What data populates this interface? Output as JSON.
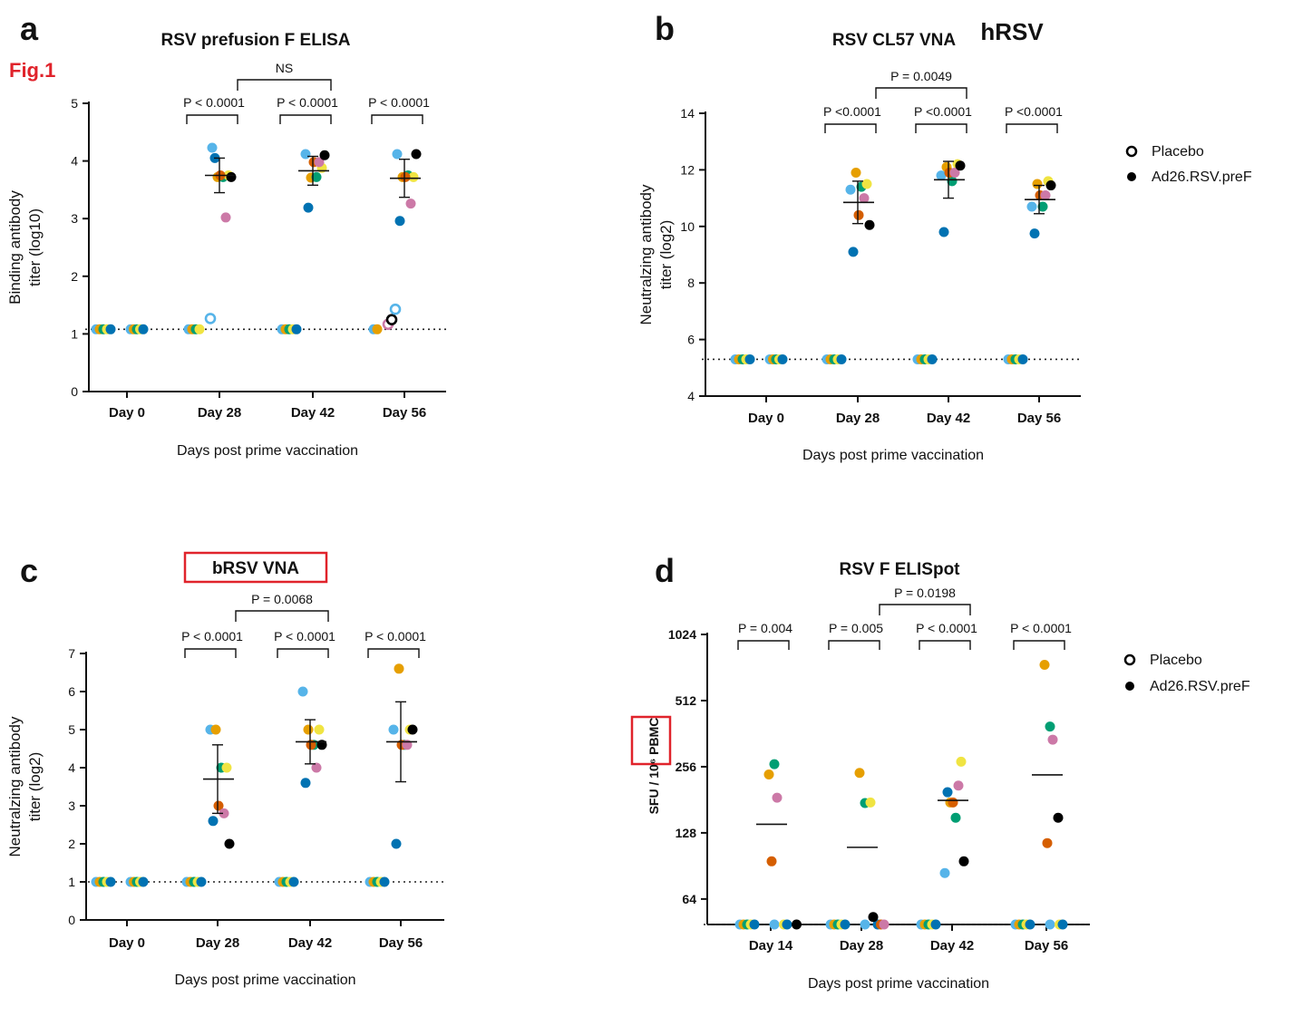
{
  "figure_label": "Fig.1",
  "legend_placebo": "Placebo",
  "legend_vaccine": "Ad26.RSV.preF",
  "colors": {
    "accent_red": "#e0232b",
    "axis": "#111111",
    "dots": [
      "#56b4e9",
      "#e69f00",
      "#009e73",
      "#f0e442",
      "#0072b2",
      "#d55e00",
      "#cc79a7",
      "#000000"
    ]
  },
  "chart_data": [
    {
      "panel": "a",
      "type": "scatter",
      "title": "RSV prefusion F ELISA",
      "ylabel_line1": "Binding antibody",
      "ylabel_line2": "titer (log10)",
      "xlabel": "Days post prime vaccination",
      "categories": [
        "Day 0",
        "Day 28",
        "Day 42",
        "Day 56"
      ],
      "y_scale": "linear",
      "ylim": [
        0,
        5
      ],
      "yticks": [
        0,
        1,
        2,
        3,
        4,
        5
      ],
      "ytick_labels": [
        "0",
        "1",
        "2",
        "3",
        "4",
        "5"
      ],
      "lloq": 1.08,
      "placebo": [
        [
          1.08,
          1.08,
          1.08,
          1.08,
          1.08
        ],
        [
          1.08,
          1.08,
          1.08,
          1.08,
          1.22
        ],
        [
          1.08,
          1.08,
          1.08,
          1.08,
          1.08
        ],
        [
          1.08,
          1.08,
          1.12,
          1.2,
          1.38
        ]
      ],
      "vaccine": [
        [
          1.08,
          1.08,
          1.08,
          1.08,
          1.08
        ],
        [
          4.23,
          3.72,
          3.72,
          3.75,
          4.05,
          3.75,
          3.02,
          3.72
        ],
        [
          4.12,
          3.71,
          3.72,
          3.88,
          3.19,
          3.98,
          3.98,
          4.1
        ],
        [
          4.12,
          3.72,
          3.75,
          3.72,
          2.96,
          3.72,
          3.26,
          4.12
        ]
      ],
      "means": [
        null,
        3.75,
        3.83,
        3.7
      ],
      "sd": [
        null,
        0.3,
        0.25,
        0.33
      ],
      "comparisons": [
        {
          "label": "P < 0.0001",
          "from": 1,
          "to": 1
        },
        {
          "label": "P < 0.0001",
          "from": 2,
          "to": 2
        },
        {
          "label": "P < 0.0001",
          "from": 3,
          "to": 3
        },
        {
          "label": "NS",
          "from": 1,
          "to": 2
        }
      ]
    },
    {
      "panel": "b",
      "type": "scatter",
      "title": "RSV CL57 VNA",
      "title_tag": "hRSV",
      "ylabel_line1": "Neutralzing antibody",
      "ylabel_line2": "titer (log2)",
      "xlabel": "Days post prime vaccination",
      "categories": [
        "Day 0",
        "Day 28",
        "Day 42",
        "Day 56"
      ],
      "y_scale": "linear",
      "ylim": [
        4,
        14
      ],
      "yticks": [
        4,
        6,
        8,
        10,
        12,
        14
      ],
      "ytick_labels": [
        "4",
        "6",
        "8",
        "10",
        "12",
        "14"
      ],
      "lloq": 5.3,
      "placebo": [
        [
          5.3,
          5.3,
          5.3,
          5.3,
          5.3
        ],
        [
          5.3,
          5.3,
          5.3,
          5.3,
          5.3
        ],
        [
          5.3,
          5.3,
          5.3,
          5.3,
          5.3
        ],
        [
          5.3,
          5.3,
          5.3,
          5.3,
          5.3
        ]
      ],
      "vaccine": [
        [
          5.3,
          5.3,
          5.3,
          5.3,
          5.3
        ],
        [
          11.3,
          11.9,
          11.4,
          11.5,
          9.1,
          10.4,
          11.0,
          10.05
        ],
        [
          11.8,
          12.1,
          11.6,
          12.2,
          9.8,
          11.9,
          11.9,
          12.15
        ],
        [
          10.7,
          11.5,
          10.7,
          11.6,
          9.75,
          11.1,
          11.1,
          11.45
        ]
      ],
      "means": [
        null,
        10.85,
        11.65,
        10.95
      ],
      "sd": [
        null,
        0.75,
        0.65,
        0.5
      ],
      "comparisons": [
        {
          "label": "P <0.0001",
          "from": 1,
          "to": 1
        },
        {
          "label": "P <0.0001",
          "from": 2,
          "to": 2
        },
        {
          "label": "P <0.0001",
          "from": 3,
          "to": 3
        },
        {
          "label": "P = 0.0049",
          "from": 1,
          "to": 2
        }
      ]
    },
    {
      "panel": "c",
      "type": "scatter",
      "title": "bRSV VNA",
      "ylabel_line1": "Neutralzing antibody",
      "ylabel_line2": "titer (log2)",
      "xlabel": "Days post prime vaccination",
      "categories": [
        "Day 0",
        "Day 28",
        "Day 42",
        "Day 56"
      ],
      "y_scale": "linear",
      "ylim": [
        0,
        7
      ],
      "yticks": [
        0,
        1,
        2,
        3,
        4,
        5,
        6,
        7
      ],
      "ytick_labels": [
        "0",
        "1",
        "2",
        "3",
        "4",
        "5",
        "6",
        "7"
      ],
      "lloq": 1.0,
      "placebo": [
        [
          1,
          1,
          1,
          1,
          1
        ],
        [
          1,
          1,
          1,
          1,
          1
        ],
        [
          1,
          1,
          1,
          1,
          1
        ],
        [
          1,
          1,
          1,
          1,
          1
        ]
      ],
      "vaccine": [
        [
          1,
          1,
          1,
          1,
          1
        ],
        [
          5.0,
          5.0,
          4.0,
          4.0,
          2.6,
          3.0,
          2.8,
          2.0
        ],
        [
          6.0,
          5.0,
          4.6,
          5.0,
          3.6,
          4.6,
          4.0,
          4.6
        ],
        [
          5.0,
          6.6,
          4.6,
          5.0,
          2.0,
          4.6,
          4.6,
          5.0
        ]
      ],
      "means": [
        null,
        3.7,
        4.68,
        4.68
      ],
      "sd": [
        null,
        0.9,
        0.58,
        1.05
      ],
      "comparisons": [
        {
          "label": "P < 0.0001",
          "from": 1,
          "to": 1
        },
        {
          "label": "P < 0.0001",
          "from": 2,
          "to": 2
        },
        {
          "label": "P < 0.0001",
          "from": 3,
          "to": 3
        },
        {
          "label": "P = 0.0068",
          "from": 1,
          "to": 2
        }
      ]
    },
    {
      "panel": "d",
      "type": "scatter",
      "title": "RSV F ELISpot",
      "ylabel": "SFU / 10⁶ PBMC",
      "xlabel": "Days post prime vaccination",
      "categories": [
        "Day 14",
        "Day 28",
        "Day 42",
        "Day 56"
      ],
      "y_scale": "log2",
      "ylim": [
        49,
        1024
      ],
      "yticks": [
        64,
        128,
        256,
        512,
        1024
      ],
      "ytick_labels": [
        "64",
        "128",
        "256",
        "512",
        "1024"
      ],
      "lloq": 49,
      "placebo": [
        [
          49,
          49,
          49,
          49,
          49
        ],
        [
          49,
          49,
          49,
          49,
          49
        ],
        [
          49,
          49,
          49,
          49,
          49
        ],
        [
          49,
          49,
          49,
          49,
          49
        ]
      ],
      "vaccine": [
        [
          49,
          236,
          263,
          49,
          49,
          95,
          185,
          49
        ],
        [
          49,
          240,
          175,
          176,
          49,
          49,
          49,
          53
        ],
        [
          84,
          176,
          150,
          270,
          196,
          176,
          210,
          95
        ],
        [
          49,
          745,
          390,
          49,
          49,
          115,
          340,
          150
        ]
      ],
      "means": [
        140,
        110,
        180,
        235
      ],
      "sd": [
        null,
        null,
        null,
        null
      ],
      "comparisons": [
        {
          "label": "P = 0.004",
          "from": 0,
          "to": 0
        },
        {
          "label": "P = 0.005",
          "from": 1,
          "to": 1
        },
        {
          "label": "P < 0.0001",
          "from": 2,
          "to": 2
        },
        {
          "label": "P < 0.0001",
          "from": 3,
          "to": 3
        },
        {
          "label": "P = 0.0198",
          "from": 1,
          "to": 2
        }
      ]
    }
  ]
}
